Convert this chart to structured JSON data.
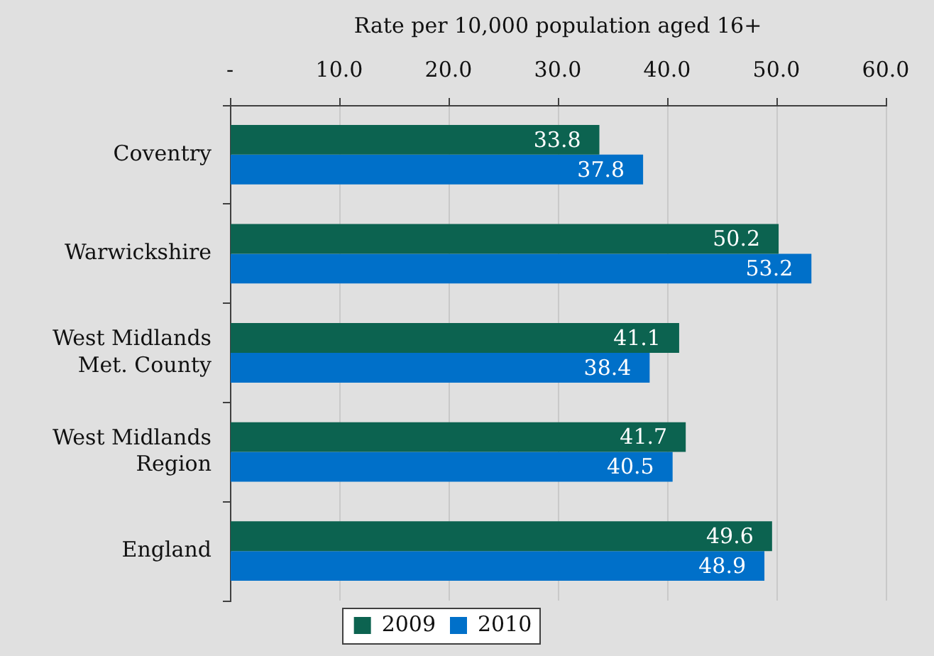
{
  "chart_data": {
    "type": "bar",
    "orientation": "horizontal",
    "xlabel": "Rate per 10,000 population aged 16+",
    "categories": [
      "Coventry",
      "Warwickshire",
      "West Midlands Met. County",
      "West Midlands Region",
      "England"
    ],
    "series": [
      {
        "name": "2009",
        "color": "#0c6350",
        "values": [
          33.8,
          50.2,
          41.1,
          41.7,
          49.6
        ]
      },
      {
        "name": "2010",
        "color": "#0070c9",
        "values": [
          37.8,
          53.2,
          38.4,
          40.5,
          48.9
        ]
      }
    ],
    "xlim": [
      0,
      60
    ],
    "xticks": [
      {
        "value": 0,
        "label": "-"
      },
      {
        "value": 10,
        "label": "10.0"
      },
      {
        "value": 20,
        "label": "20.0"
      },
      {
        "value": 30,
        "label": "30.0"
      },
      {
        "value": 40,
        "label": "40.0"
      },
      {
        "value": 50,
        "label": "50.0"
      },
      {
        "value": 60,
        "label": "60.0"
      }
    ],
    "grid": "x",
    "legend": "bottom",
    "data_labels": true
  }
}
